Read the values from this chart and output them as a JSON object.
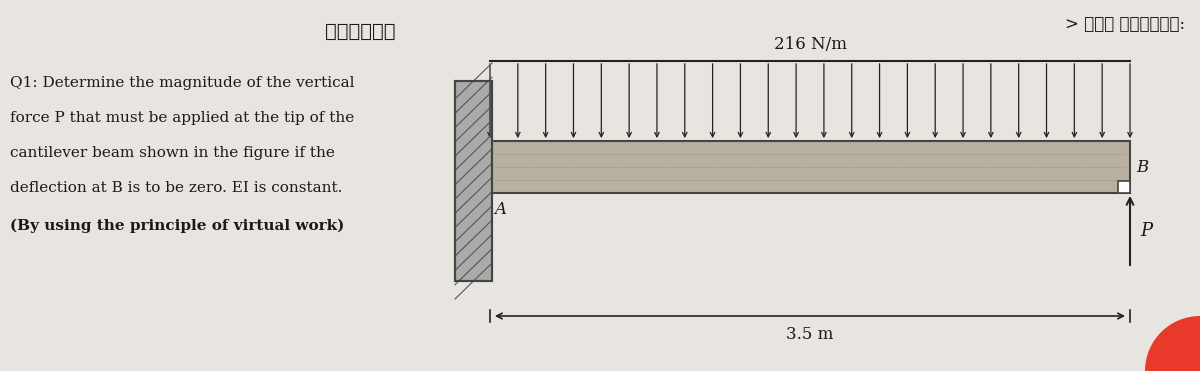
{
  "bg_color": "#d4d0cc",
  "text_color": "#1a1a1a",
  "arabic_title": "الشعبة",
  "arabic_student": "> أسم الطالب:",
  "question_text_lines": [
    "Q1: Determine the magnitude of the vertical",
    "force P that must be applied at the tip of the",
    "cantilever beam shown in the figure if the",
    "deflection at B is to be zero. EI is constant.",
    "(By using the principle of virtual work)"
  ],
  "load_label": "216 N/m",
  "length_label": "3.5 m",
  "point_A": "A",
  "point_B": "B",
  "point_P": "P",
  "beam_color": "#b8b0a0",
  "beam_edge_color": "#444444",
  "wall_color": "#999999",
  "arrow_color": "#222222",
  "dim_line_color": "#222222"
}
